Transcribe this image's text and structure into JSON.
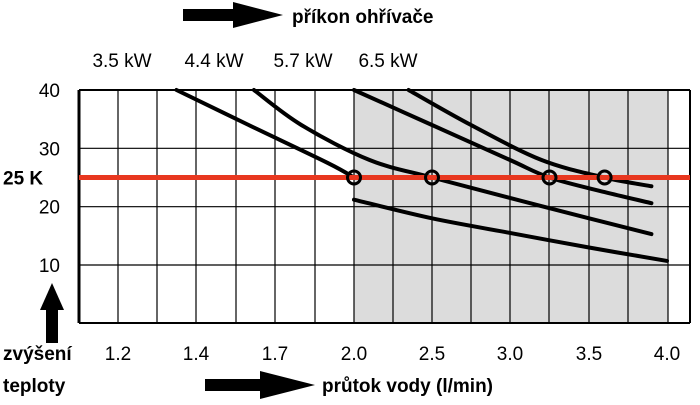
{
  "chart_data": {
    "type": "line",
    "title": "příkon ohřívače",
    "xlabel": "průtok vody (l/min)",
    "ylabel_lines": [
      "zvýšení",
      "teploty"
    ],
    "x_tick_labels": [
      "1.2",
      "1.4",
      "1.7",
      "2.0",
      "2.5",
      "3.0",
      "3.5",
      "4.0"
    ],
    "y_tick_labels": [
      "40",
      "30",
      "20",
      "10"
    ],
    "y_ticks": [
      40,
      30,
      20,
      10
    ],
    "ylim": [
      0,
      40
    ],
    "grid": true,
    "shaded_x_index_range": [
      3,
      7
    ],
    "reference_line": {
      "label": "25 K",
      "y": 25,
      "color": "#e8371f"
    },
    "series": [
      {
        "name": "3.5 kW",
        "points": [
          [
            1.35,
            40
          ],
          [
            1.6,
            34
          ],
          [
            1.9,
            27.5
          ],
          [
            2.0,
            25
          ]
        ],
        "marker_x": 2.0
      },
      {
        "name": "4.4 kW",
        "points": [
          [
            1.62,
            40
          ],
          [
            1.8,
            34
          ],
          [
            2.1,
            28
          ],
          [
            2.5,
            25
          ],
          [
            3.0,
            21.5
          ],
          [
            3.5,
            18
          ],
          [
            3.9,
            15.3
          ]
        ],
        "marker_x": 2.5
      },
      {
        "name": "5.7 kW",
        "points": [
          [
            2.0,
            40
          ],
          [
            2.5,
            34
          ],
          [
            3.0,
            28
          ],
          [
            3.25,
            25
          ],
          [
            3.6,
            22.5
          ],
          [
            3.9,
            20.6
          ]
        ],
        "marker_x": 3.25
      },
      {
        "name": "6.5 kW",
        "points": [
          [
            2.35,
            40
          ],
          [
            2.75,
            34
          ],
          [
            3.2,
            28
          ],
          [
            3.6,
            25
          ],
          [
            3.9,
            23.5
          ]
        ],
        "marker_x": 3.6
      },
      {
        "name": "",
        "points": [
          [
            2.0,
            21.2
          ],
          [
            2.5,
            18
          ],
          [
            3.0,
            15.5
          ],
          [
            3.5,
            13
          ],
          [
            4.0,
            10.7
          ]
        ],
        "marker_x": null
      }
    ],
    "colors": {
      "curve": "#000000",
      "reference": "#e8371f",
      "shade": "#dcdcdc",
      "grid": "#000000"
    },
    "icons": [
      "arrow-right-icon",
      "arrow-up-icon"
    ]
  }
}
